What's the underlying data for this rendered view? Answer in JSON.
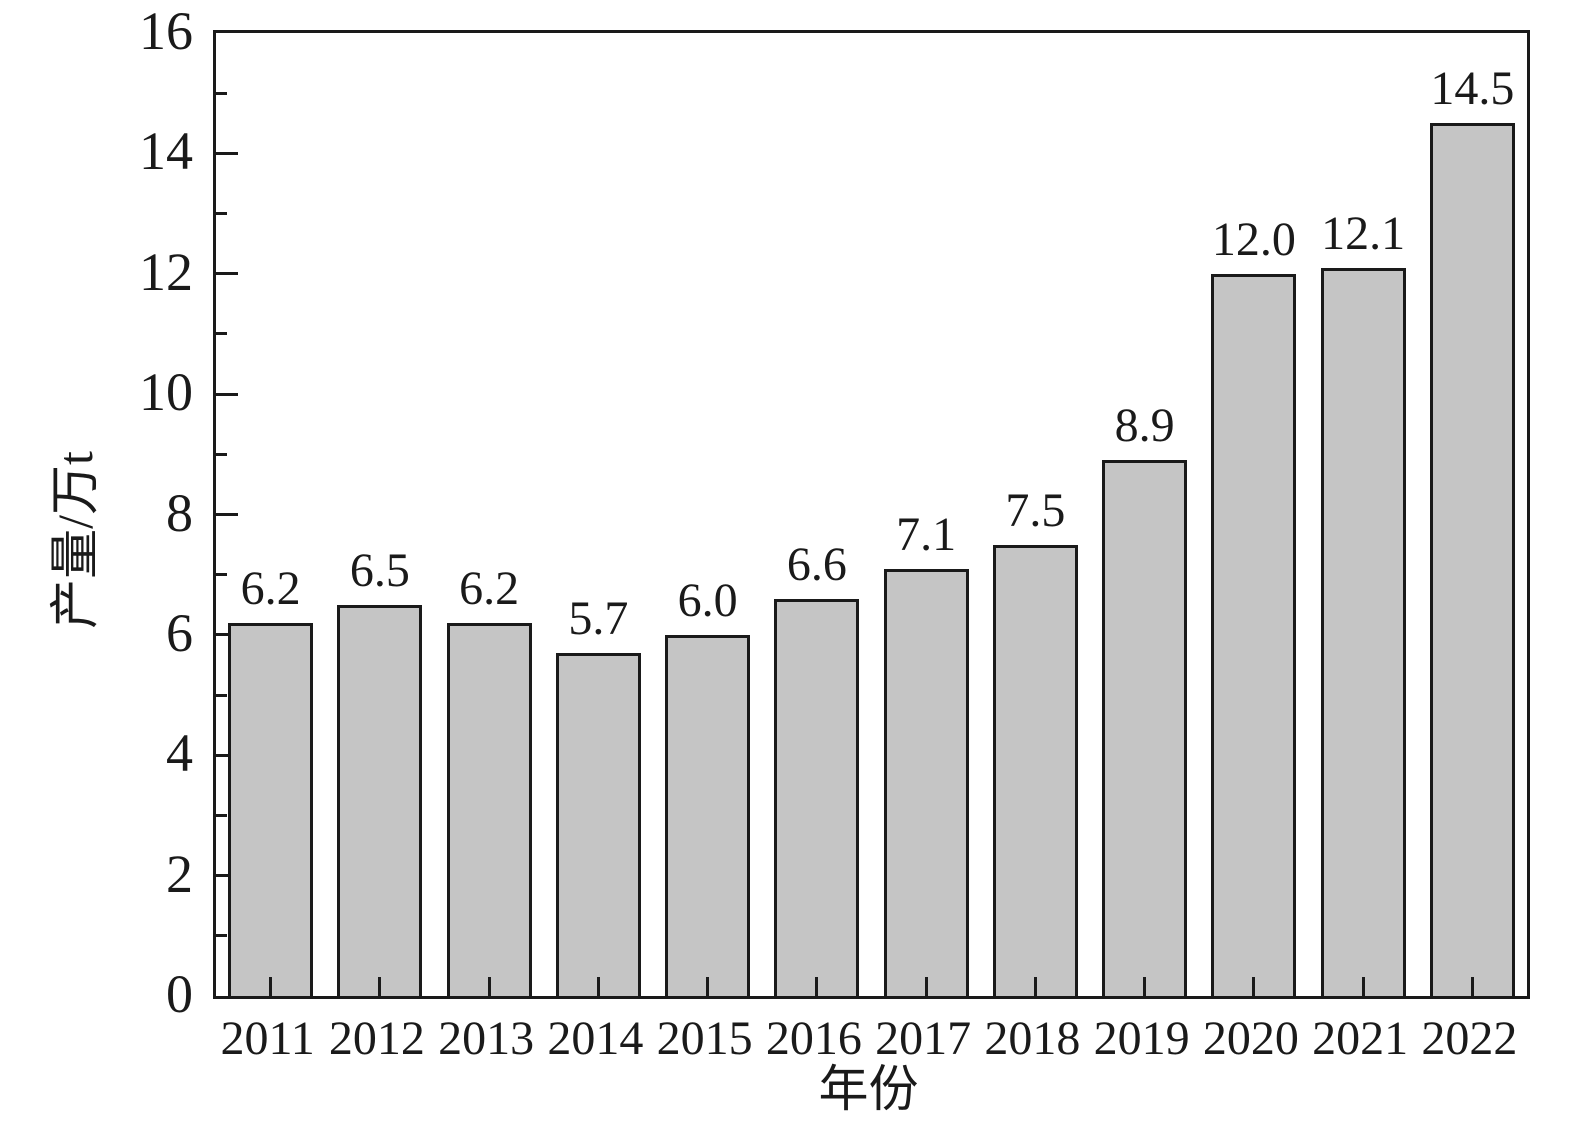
{
  "chart_data": {
    "type": "bar",
    "categories": [
      "2011",
      "2012",
      "2013",
      "2014",
      "2015",
      "2016",
      "2017",
      "2018",
      "2019",
      "2020",
      "2021",
      "2022"
    ],
    "values": [
      6.2,
      6.5,
      6.2,
      5.7,
      6.0,
      6.6,
      7.1,
      7.5,
      8.9,
      12.0,
      12.1,
      14.5
    ],
    "value_labels": [
      "6.2",
      "6.5",
      "6.2",
      "5.7",
      "6.0",
      "6.6",
      "7.1",
      "7.5",
      "8.9",
      "12.0",
      "12.1",
      "14.5"
    ],
    "title": "",
    "xlabel": "年份",
    "ylabel": "产量/万t",
    "ylim": [
      0,
      16
    ],
    "yticks": [
      0,
      2,
      4,
      6,
      8,
      10,
      12,
      14,
      16
    ],
    "ytick_labels": [
      "0",
      "2",
      "4",
      "6",
      "8",
      "10",
      "12",
      "14",
      "16"
    ],
    "yticks_minor": [
      1,
      3,
      5,
      7,
      9,
      11,
      13,
      15
    ],
    "grid": false,
    "legend": false,
    "bar_fill_color": "#c5c5c5",
    "line_color": "#1a1a1a"
  }
}
